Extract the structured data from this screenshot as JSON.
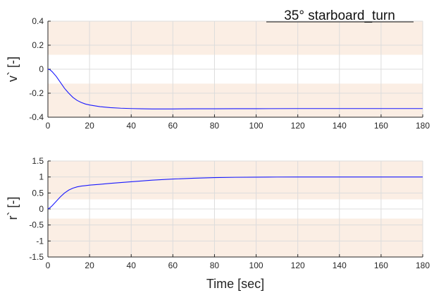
{
  "colors": {
    "band": "#fbeee4",
    "line": "#1a1aff",
    "grid": "#dcdcdc",
    "axis": "#262626"
  },
  "chart_data": [
    {
      "type": "line",
      "title": "35° starboard_turn",
      "ylabel": "v` [-]",
      "xlabel": "",
      "xlim": [
        0,
        180
      ],
      "ylim": [
        -0.4,
        0.4
      ],
      "xticks": [
        0,
        20,
        40,
        60,
        80,
        100,
        120,
        140,
        160,
        180
      ],
      "yticks": [
        -0.4,
        -0.2,
        0,
        0.2,
        0.4
      ],
      "ytick_labels": [
        "-0.4",
        "-0.2",
        "0",
        "0.2",
        "0.4"
      ],
      "grid": true,
      "bands": [
        [
          0.12,
          0.4
        ],
        [
          -0.4,
          -0.12
        ]
      ],
      "series": [
        {
          "x": [
            0,
            1,
            2,
            4,
            6,
            8,
            10,
            12,
            14,
            16,
            18,
            20,
            25,
            30,
            35,
            40,
            45,
            50,
            55,
            60,
            70,
            80,
            90,
            100,
            120,
            140,
            160,
            180
          ],
          "values": [
            0,
            -0.005,
            -0.02,
            -0.06,
            -0.11,
            -0.16,
            -0.2,
            -0.235,
            -0.26,
            -0.277,
            -0.29,
            -0.298,
            -0.312,
            -0.32,
            -0.325,
            -0.328,
            -0.33,
            -0.331,
            -0.331,
            -0.331,
            -0.33,
            -0.33,
            -0.329,
            -0.329,
            -0.328,
            -0.328,
            -0.328,
            -0.328
          ]
        }
      ]
    },
    {
      "type": "line",
      "title": "",
      "ylabel": "r` [-]",
      "xlabel": "Time [sec]",
      "xlim": [
        0,
        180
      ],
      "ylim": [
        -1.5,
        1.5
      ],
      "xticks": [
        0,
        20,
        40,
        60,
        80,
        100,
        120,
        140,
        160,
        180
      ],
      "yticks": [
        -1.5,
        -1,
        -0.5,
        0,
        0.5,
        1,
        1.5
      ],
      "ytick_labels": [
        "-1.5",
        "-1",
        "-0.5",
        "0",
        "0.5",
        "1",
        "1.5"
      ],
      "grid": true,
      "bands": [
        [
          0.3,
          1.5
        ],
        [
          -1.5,
          -0.3
        ]
      ],
      "series": [
        {
          "x": [
            0,
            1,
            2,
            4,
            6,
            8,
            10,
            12,
            14,
            16,
            18,
            20,
            25,
            30,
            40,
            50,
            60,
            70,
            80,
            90,
            100,
            110,
            120,
            140,
            160,
            180
          ],
          "values": [
            0,
            0.04,
            0.1,
            0.24,
            0.38,
            0.5,
            0.59,
            0.65,
            0.69,
            0.715,
            0.73,
            0.745,
            0.77,
            0.8,
            0.85,
            0.9,
            0.935,
            0.96,
            0.98,
            0.99,
            0.995,
            0.998,
            1.0,
            1.0,
            1.0,
            1.0
          ]
        }
      ]
    }
  ]
}
